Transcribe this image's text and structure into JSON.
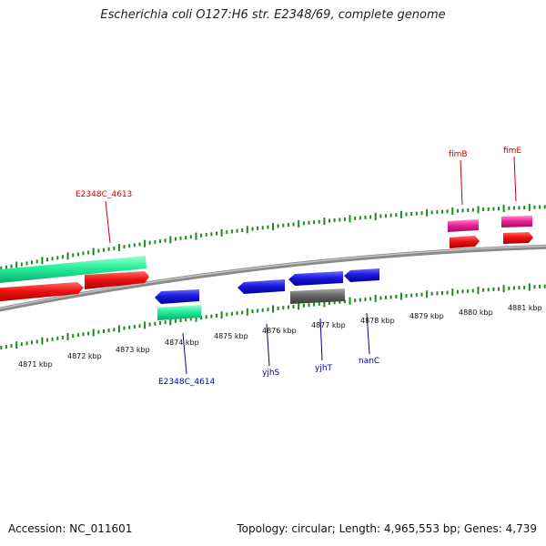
{
  "title": "Escherichia coli O127:H6 str. E2348/69, complete genome",
  "footer": {
    "accession": "Accession: NC_011601",
    "summary": "Topology: circular; Length: 4,965,553 bp; Genes: 4,739"
  },
  "colors": {
    "forward_track": "#1a8a1a",
    "reverse_track": "#1a8a1a",
    "backbone": "#8a8a8a",
    "cds_red": "#ee1111",
    "cds_green": "#22ee99",
    "cds_blue": "#1a1add",
    "cds_gray": "#666666",
    "cds_pink": "#ee2299",
    "label_forward": "#cc0000",
    "label_reverse": "#0000aa"
  },
  "kbp_labels": [
    "4871 kbp",
    "4872 kbp",
    "4873 kbp",
    "4874 kbp",
    "4875 kbp",
    "4876 kbp",
    "4877 kbp",
    "4878 kbp",
    "4879 kbp",
    "4880 kbp",
    "4881 kbp"
  ],
  "gene_labels": {
    "forward": [
      "E2348C_4613",
      "fimB",
      "fimE"
    ],
    "reverse": [
      "E2348C_4614",
      "yjhS",
      "yjhT",
      "nanC"
    ]
  },
  "features": [
    {
      "id": "green-top-1",
      "strand": "+",
      "color": "cds_green"
    },
    {
      "id": "red-top-1",
      "strand": "+",
      "color": "cds_red"
    },
    {
      "id": "red-top-2",
      "strand": "+",
      "color": "cds_red"
    },
    {
      "id": "blue-1",
      "strand": "-",
      "color": "cds_blue"
    },
    {
      "id": "green-low-1",
      "strand": "-",
      "color": "cds_green"
    },
    {
      "id": "blue-2",
      "strand": "-",
      "color": "cds_blue"
    },
    {
      "id": "blue-3",
      "strand": "-",
      "color": "cds_blue"
    },
    {
      "id": "gray-1",
      "strand": "-",
      "color": "cds_gray"
    },
    {
      "id": "blue-4",
      "strand": "-",
      "color": "cds_blue"
    },
    {
      "id": "pink-1",
      "strand": "+",
      "color": "cds_pink"
    },
    {
      "id": "red-fimB",
      "strand": "+",
      "color": "cds_red"
    },
    {
      "id": "pink-2",
      "strand": "+",
      "color": "cds_pink"
    },
    {
      "id": "red-fimE",
      "strand": "+",
      "color": "cds_red"
    }
  ]
}
